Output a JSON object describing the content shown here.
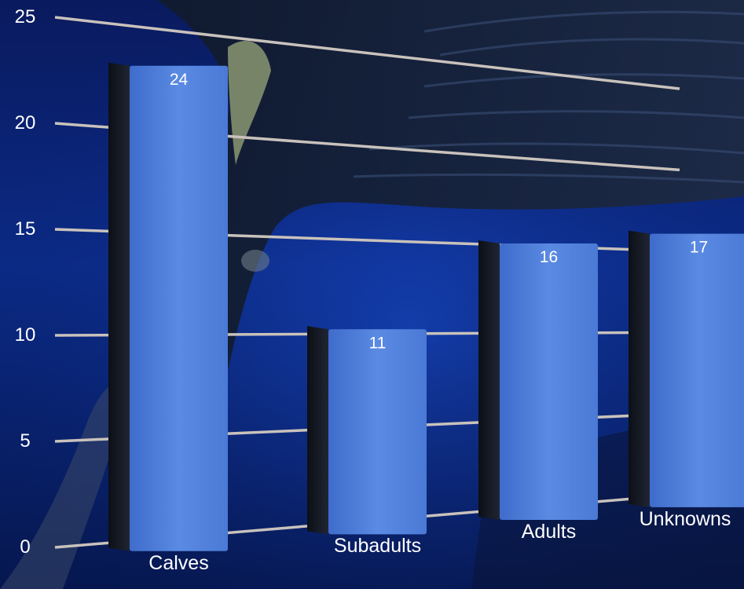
{
  "chart_data": {
    "type": "bar",
    "categories": [
      "Calves",
      "Subadults",
      "Adults",
      "Unknowns"
    ],
    "values": [
      24,
      11,
      16,
      17
    ],
    "title": "",
    "xlabel": "",
    "ylabel": "",
    "ylim": [
      0,
      25
    ],
    "yticks": [
      "0",
      "5",
      "10",
      "15",
      "20",
      "25"
    ],
    "grid": true,
    "bar_color": "#4f7ed6",
    "bar_side_color": "#14181f",
    "background": "underwater whale photograph",
    "style": "3D perspective"
  }
}
